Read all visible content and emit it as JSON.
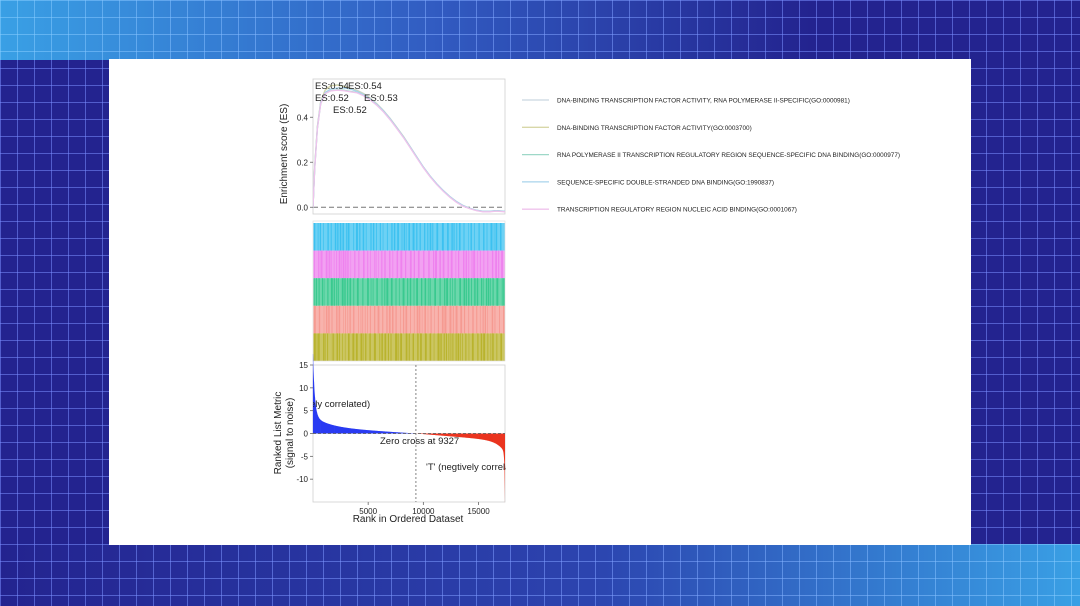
{
  "chart_data": {
    "type": "line",
    "es_panel": {
      "ylabel": "Enrichment score (ES)",
      "yticks": [
        0.0,
        0.2,
        0.4
      ],
      "ylim": [
        -0.03,
        0.57
      ],
      "xlim": [
        0,
        17400
      ],
      "baseline": 0.0,
      "curve_x": [
        0,
        150,
        400,
        700,
        1100,
        1600,
        2200,
        2800,
        3400,
        4000,
        4600,
        5200,
        5800,
        6400,
        7000,
        7600,
        8200,
        8800,
        9400,
        10000,
        10600,
        11200,
        11800,
        12400,
        13000,
        13600,
        14200,
        14800,
        15400,
        16000,
        16600,
        17400
      ],
      "annotations": [
        "ES:0.54",
        "ES:0.54",
        "ES:0.52",
        "ES:0.53",
        "ES:0.52"
      ],
      "series": [
        {
          "name": "DNA-BINDING TRANSCRIPTION FACTOR ACTIVITY, RNA POLYMERASE II-SPECIFIC(GO:0000981)",
          "color": "#c9d6e0",
          "values": [
            0.0,
            0.18,
            0.36,
            0.47,
            0.52,
            0.54,
            0.545,
            0.54,
            0.53,
            0.52,
            0.505,
            0.485,
            0.46,
            0.43,
            0.395,
            0.355,
            0.315,
            0.27,
            0.225,
            0.18,
            0.14,
            0.105,
            0.075,
            0.048,
            0.026,
            0.008,
            -0.004,
            -0.013,
            -0.018,
            -0.018,
            -0.015,
            -0.018
          ]
        },
        {
          "name": "DNA-BINDING TRANSCRIPTION FACTOR ACTIVITY(GO:0003700)",
          "color": "#d8d7a8",
          "values": [
            0.0,
            0.18,
            0.36,
            0.47,
            0.52,
            0.54,
            0.543,
            0.538,
            0.528,
            0.518,
            0.503,
            0.483,
            0.458,
            0.428,
            0.393,
            0.353,
            0.313,
            0.268,
            0.223,
            0.178,
            0.138,
            0.103,
            0.073,
            0.046,
            0.024,
            0.006,
            -0.005,
            -0.014,
            -0.019,
            -0.019,
            -0.016,
            -0.019
          ]
        },
        {
          "name": "RNA POLYMERASE II TRANSCRIPTION REGULATORY REGION SEQUENCE-SPECIFIC DNA BINDING(GO:0000977)",
          "color": "#9ed8c8",
          "values": [
            0.0,
            0.17,
            0.35,
            0.46,
            0.505,
            0.518,
            0.522,
            0.52,
            0.515,
            0.51,
            0.497,
            0.478,
            0.454,
            0.425,
            0.39,
            0.351,
            0.311,
            0.267,
            0.222,
            0.178,
            0.138,
            0.103,
            0.073,
            0.046,
            0.024,
            0.006,
            -0.005,
            -0.014,
            -0.019,
            -0.019,
            -0.016,
            -0.019
          ]
        },
        {
          "name": "SEQUENCE-SPECIFIC DOUBLE-STRANDED DNA BINDING(GO:1990837)",
          "color": "#a8d4ec",
          "values": [
            0.0,
            0.175,
            0.355,
            0.465,
            0.51,
            0.525,
            0.53,
            0.53,
            0.525,
            0.515,
            0.5,
            0.48,
            0.456,
            0.427,
            0.392,
            0.352,
            0.312,
            0.268,
            0.223,
            0.179,
            0.139,
            0.104,
            0.074,
            0.047,
            0.025,
            0.007,
            -0.004,
            -0.013,
            -0.018,
            -0.018,
            -0.015,
            -0.018
          ]
        },
        {
          "name": "TRANSCRIPTION REGULATORY REGION NUCLEIC ACID BINDING(GO:0001067)",
          "color": "#efc3ec",
          "values": [
            0.0,
            0.17,
            0.35,
            0.46,
            0.505,
            0.517,
            0.52,
            0.518,
            0.513,
            0.508,
            0.495,
            0.476,
            0.452,
            0.423,
            0.388,
            0.349,
            0.309,
            0.265,
            0.22,
            0.176,
            0.136,
            0.101,
            0.071,
            0.044,
            0.022,
            0.004,
            -0.006,
            -0.015,
            -0.02,
            -0.02,
            -0.017,
            -0.02
          ]
        }
      ]
    },
    "hits_panel": {
      "rows": [
        {
          "color": "#3cc1f0"
        },
        {
          "color": "#ee82ee"
        },
        {
          "color": "#39c98f"
        },
        {
          "color": "#f59a91"
        },
        {
          "color": "#b9b32d"
        }
      ]
    },
    "metric_panel": {
      "xlabel": "Rank in Ordered Dataset",
      "ylabel_line1": "Ranked List Metric",
      "ylabel_line2": "(signal to noise)",
      "xticks": [
        5000,
        10000,
        15000
      ],
      "yticks": [
        15,
        10,
        5,
        0,
        -5,
        -10
      ],
      "xlim": [
        0,
        17400
      ],
      "ylim": [
        -15,
        15
      ],
      "zero_cross": 9327,
      "zero_cross_label": "Zero cross at 9327",
      "pos_label": "'na' (positively correlated)",
      "neg_label": "'T' (negtively correlated)",
      "n": 17400,
      "pos_color": "#1a2cf0",
      "neg_color": "#e8230e"
    }
  }
}
